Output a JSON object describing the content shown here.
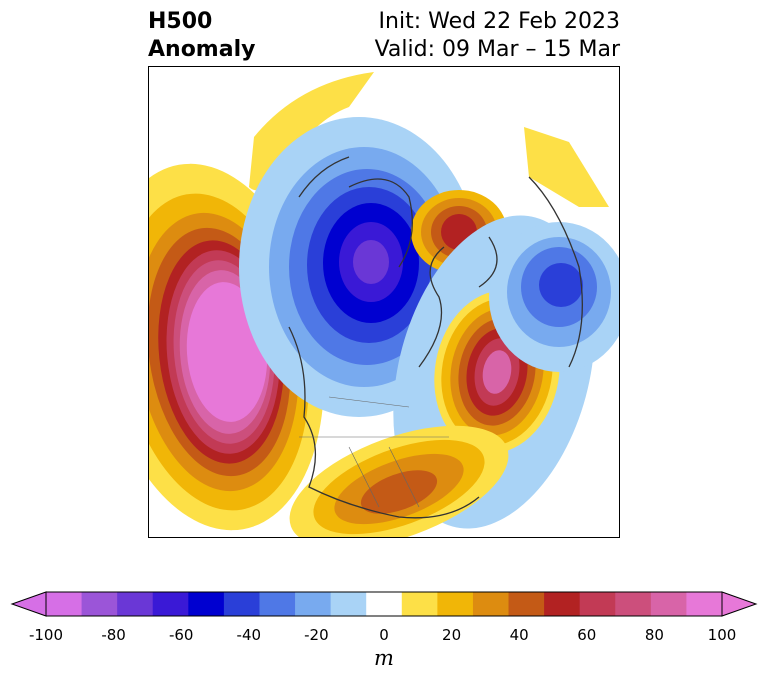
{
  "title": {
    "left_line1": "H500",
    "left_line2": "Anomaly",
    "right_line1": "Init: Wed 22 Feb 2023",
    "right_line2": "Valid: 09 Mar – 15 Mar"
  },
  "colorbar": {
    "units": "m",
    "tick_labels": [
      "-100",
      "-80",
      "-60",
      "-40",
      "-20",
      "0",
      "20",
      "40",
      "60",
      "80",
      "100"
    ],
    "levels": [
      -100,
      -90,
      -80,
      -70,
      -60,
      -50,
      -40,
      -30,
      -20,
      -10,
      10,
      20,
      30,
      40,
      50,
      60,
      70,
      80,
      90,
      100
    ],
    "colors": [
      "#d66fe6",
      "#9b55d8",
      "#6a37d6",
      "#3a19d6",
      "#0000d0",
      "#2a3fd8",
      "#4f78e6",
      "#78aaef",
      "#a9d3f6",
      "#ffffff",
      "#fde047",
      "#f1b607",
      "#dd8c10",
      "#c45a16",
      "#b22222",
      "#c23a55",
      "#cc4f7c",
      "#d864a8",
      "#e778d8"
    ],
    "extend": "both"
  },
  "map": {
    "projection": "polar-stereographic",
    "anomaly_centers": [
      {
        "region": "North Pacific",
        "sign": "positive",
        "peak": 100
      },
      {
        "region": "Northern Canada",
        "sign": "negative",
        "peak": -90
      },
      {
        "region": "Greenland",
        "sign": "positive",
        "peak": 60
      },
      {
        "region": "North Atlantic",
        "sign": "positive",
        "peak": 90
      },
      {
        "region": "Northern Europe",
        "sign": "negative",
        "peak": -60
      },
      {
        "region": "Southeastern US",
        "sign": "positive",
        "peak": 50
      }
    ]
  }
}
